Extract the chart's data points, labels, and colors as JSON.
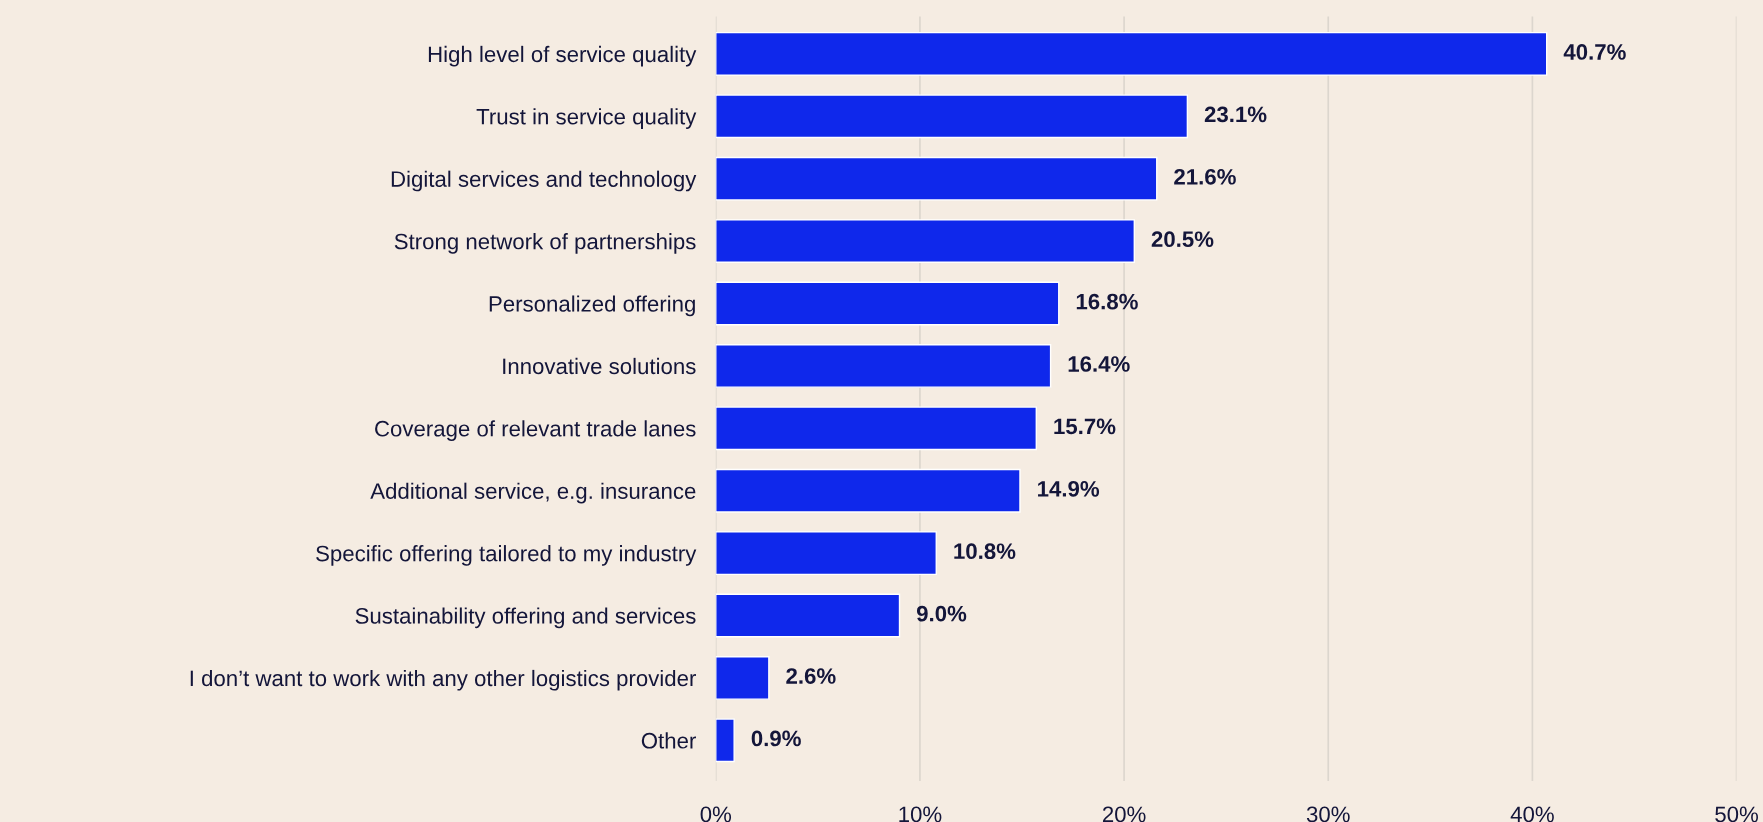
{
  "chart_data": {
    "type": "bar",
    "orientation": "horizontal",
    "categories": [
      "High level of service quality",
      "Trust in service quality",
      "Digital services and technology",
      "Strong network of partnerships",
      "Personalized offering",
      "Innovative solutions",
      "Coverage of relevant trade lanes",
      "Additional service, e.g. insurance",
      "Specific offering tailored to my industry",
      "Sustainability offering and services",
      "I don’t want to work with any other logistics provider",
      "Other"
    ],
    "values": [
      40.7,
      23.1,
      21.6,
      20.5,
      16.8,
      16.4,
      15.7,
      14.9,
      10.8,
      9.0,
      2.6,
      0.9
    ],
    "value_labels": [
      "40.7%",
      "23.1%",
      "21.6%",
      "20.5%",
      "16.8%",
      "16.4%",
      "15.7%",
      "14.9%",
      "10.8%",
      "9.0%",
      "2.6%",
      "0.9%"
    ],
    "color": "#0f28eb",
    "xlim": [
      0,
      50
    ],
    "xticks": [
      {
        "value": 0,
        "label": "0%"
      },
      {
        "value": 10,
        "label": "10%"
      },
      {
        "value": 20,
        "label": "20%"
      },
      {
        "value": 30,
        "label": "30%"
      },
      {
        "value": 40,
        "label": "40%"
      },
      {
        "value": 50,
        "label": "50%"
      }
    ],
    "grid": "x"
  }
}
